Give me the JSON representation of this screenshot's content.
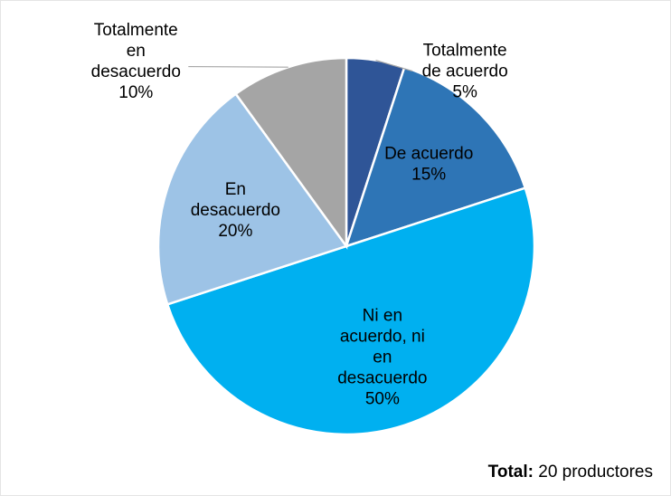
{
  "chart_data": {
    "type": "pie",
    "categories": [
      "Totalmente de acuerdo",
      "De acuerdo",
      "Ni en acuerdo, ni en desacuerdo",
      "En desacuerdo",
      "Totalmente en desacuerdo"
    ],
    "values": [
      5,
      15,
      50,
      20,
      10
    ],
    "value_labels": [
      "5%",
      "15%",
      "50%",
      "20%",
      "10%"
    ],
    "colors": [
      "#2f5597",
      "#2e75b6",
      "#00b0f0",
      "#9dc3e6",
      "#a5a5a5"
    ],
    "total_label": "Total:",
    "total_text": "20 productores"
  }
}
